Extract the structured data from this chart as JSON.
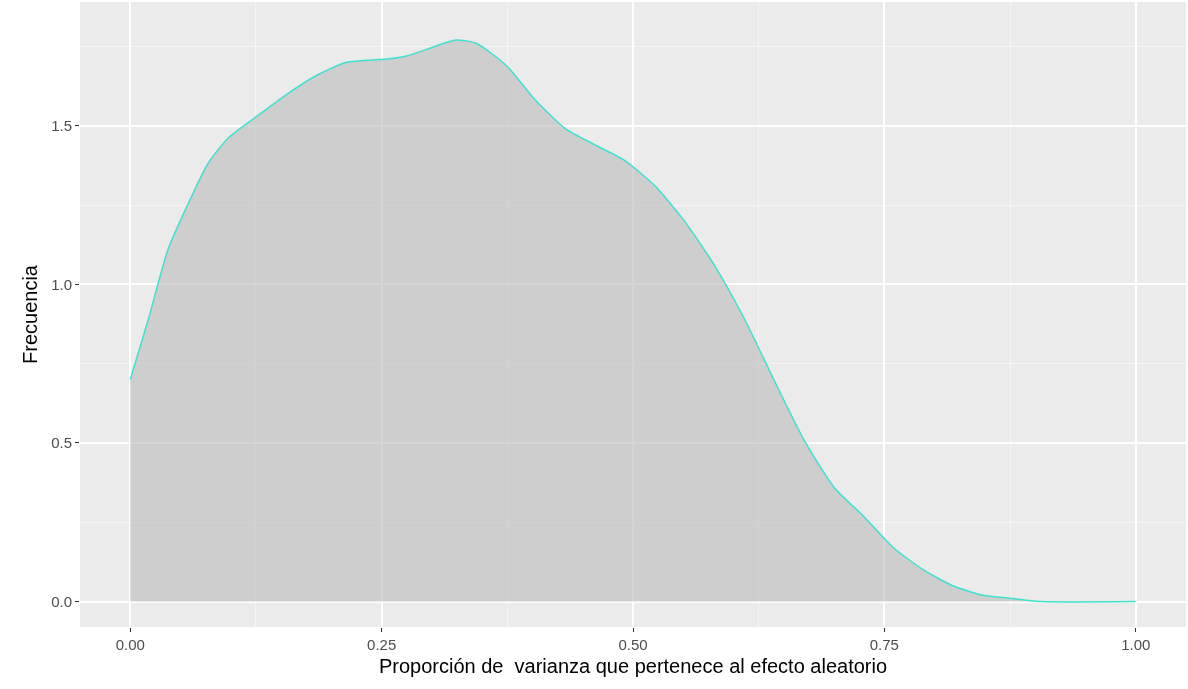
{
  "chart_data": {
    "type": "area",
    "xlabel": "Proporción de  varianza que pertenece al efecto aleatorio",
    "ylabel": "Frecuencia",
    "x": [
      0.0,
      0.018,
      0.0375,
      0.057,
      0.077,
      0.097,
      0.126,
      0.156,
      0.186,
      0.215,
      0.255,
      0.275,
      0.294,
      0.324,
      0.344,
      0.374,
      0.403,
      0.433,
      0.462,
      0.492,
      0.522,
      0.551,
      0.581,
      0.611,
      0.64,
      0.67,
      0.7,
      0.729,
      0.759,
      0.789,
      0.818,
      0.848,
      0.877,
      0.907,
      1.0
    ],
    "series": [
      {
        "color": "#40e0d0",
        "values": [
          0.7,
          0.89,
          1.11,
          1.25,
          1.38,
          1.46,
          1.53,
          1.6,
          1.66,
          1.7,
          1.71,
          1.72,
          1.74,
          1.77,
          1.76,
          1.69,
          1.58,
          1.49,
          1.44,
          1.39,
          1.31,
          1.2,
          1.06,
          0.89,
          0.7,
          0.51,
          0.36,
          0.27,
          0.17,
          0.1,
          0.05,
          0.02,
          0.01,
          0.0,
          0.0
        ]
      }
    ],
    "xlim": [
      -0.05,
      1.05
    ],
    "xticks": [
      {
        "value": 0,
        "label": "0.00"
      },
      {
        "value": 0.25,
        "label": "0.25"
      },
      {
        "value": 0.5,
        "label": "0.50"
      },
      {
        "value": 0.75,
        "label": "0.75"
      },
      {
        "value": 1,
        "label": "1.00"
      }
    ],
    "ylim": [
      -0.08,
      1.89
    ],
    "yticks": [
      {
        "value": 0,
        "label": "0.0"
      },
      {
        "value": 0.5,
        "label": "0.5"
      },
      {
        "value": 1,
        "label": "1.0"
      },
      {
        "value": 1.5,
        "label": "1.5"
      }
    ],
    "grid": true,
    "legend": false
  }
}
